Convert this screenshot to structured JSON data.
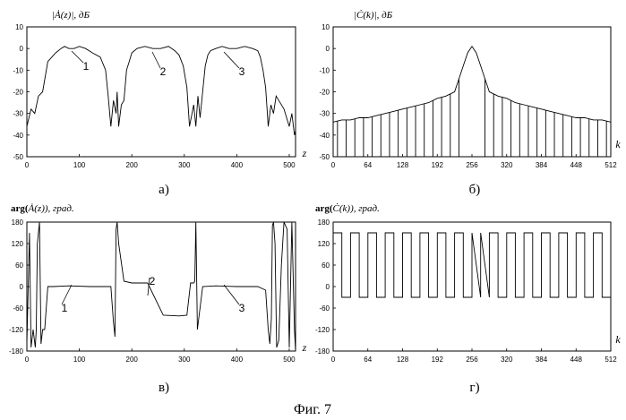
{
  "caption": "Фиг. 7",
  "chart_data": [
    {
      "id": "a",
      "type": "line",
      "title_pre": "|Ȧ(z)|",
      "title_post": ", дБ",
      "xlabel": "z",
      "xlim": [
        0,
        512
      ],
      "ylim": [
        -50,
        10
      ],
      "xticks": [
        0,
        100,
        200,
        300,
        400,
        500
      ],
      "yticks": [
        10,
        0,
        -10,
        -20,
        -30,
        -40,
        -50
      ],
      "sublabel": "а)",
      "annotations": [
        "1",
        "2",
        "3"
      ],
      "series": [
        {
          "name": "|A(z)|, dB",
          "x": [
            0,
            8,
            15,
            22,
            30,
            40,
            55,
            65,
            72,
            80,
            90,
            100,
            112,
            125,
            140,
            150,
            155,
            160,
            165,
            170,
            172,
            175,
            180,
            185,
            190,
            195,
            200,
            210,
            225,
            240,
            255,
            270,
            282,
            290,
            298,
            305,
            310,
            318,
            322,
            326,
            330,
            335,
            340,
            345,
            350,
            360,
            372,
            385,
            400,
            415,
            430,
            440,
            445,
            450,
            455,
            460,
            465,
            470,
            475,
            480,
            490,
            500,
            505,
            510,
            512
          ],
          "y": [
            -36,
            -28,
            -30,
            -22,
            -20,
            -6,
            -2,
            0,
            1,
            0,
            0,
            1,
            0,
            -2,
            -4,
            -10,
            -22,
            -36,
            -24,
            -30,
            -20,
            -36,
            -26,
            -24,
            -10,
            -6,
            -2,
            0,
            1,
            0,
            0,
            1,
            -1,
            -3,
            -8,
            -18,
            -36,
            -26,
            -36,
            -22,
            -32,
            -20,
            -8,
            -3,
            -1,
            0,
            1,
            0,
            0,
            1,
            0,
            -1,
            -4,
            -10,
            -18,
            -36,
            -26,
            -30,
            -22,
            -24,
            -28,
            -36,
            -30,
            -40,
            -38
          ]
        }
      ]
    },
    {
      "id": "b",
      "type": "line",
      "title_pre": "|Ċ(k)|",
      "title_post": ", дБ",
      "xlabel": "k",
      "xlim": [
        0,
        512
      ],
      "ylim": [
        -50,
        10
      ],
      "xticks": [
        0,
        64,
        128,
        192,
        256,
        320,
        384,
        448,
        512
      ],
      "yticks": [
        10,
        0,
        -10,
        -20,
        -30,
        -40,
        -50
      ],
      "sublabel": "б)",
      "series": [
        {
          "name": "|C(k)|, dB",
          "x": [
            0,
            16,
            32,
            48,
            64,
            80,
            96,
            112,
            128,
            144,
            160,
            176,
            192,
            208,
            224,
            232,
            240,
            248,
            256,
            264,
            272,
            280,
            288,
            304,
            320,
            336,
            352,
            368,
            384,
            400,
            416,
            432,
            448,
            464,
            480,
            496,
            512
          ],
          "y": [
            -34,
            -33,
            -33,
            -32,
            -32,
            -31,
            -30,
            -29,
            -28,
            -27,
            -26,
            -25,
            -23,
            -22,
            -20,
            -14,
            -8,
            -2,
            1,
            -2,
            -8,
            -14,
            -20,
            -22,
            -23,
            -25,
            -26,
            -27,
            -28,
            -29,
            -30,
            -31,
            -32,
            -32,
            -33,
            -33,
            -34
          ]
        }
      ]
    },
    {
      "id": "v",
      "type": "line",
      "title_pre": "arg(",
      "title_mid": "Ȧ(z)",
      "title_post": "), град.",
      "xlabel": "z",
      "xlim": [
        0,
        512
      ],
      "ylim": [
        -180,
        180
      ],
      "xticks": [
        0,
        100,
        200,
        300,
        400,
        500
      ],
      "yticks": [
        180,
        120,
        60,
        0,
        -60,
        -120,
        -180
      ],
      "sublabel": "в)",
      "annotations": [
        "1",
        "2",
        "3"
      ],
      "series": [
        {
          "name": "arg(A(z)), deg",
          "x": [
            0,
            5,
            8,
            12,
            16,
            18,
            20,
            24,
            27,
            30,
            34,
            40,
            50,
            80,
            120,
            160,
            165,
            168,
            170,
            172,
            175,
            185,
            200,
            230,
            260,
            290,
            305,
            312,
            318,
            320,
            322,
            325,
            335,
            360,
            400,
            440,
            455,
            460,
            463,
            466,
            468,
            470,
            473,
            476,
            480,
            485,
            490,
            496,
            500,
            505,
            510,
            512
          ],
          "y": [
            -160,
            150,
            -170,
            -120,
            -170,
            -120,
            120,
            180,
            -160,
            -120,
            -120,
            0,
            0,
            2,
            0,
            0,
            -100,
            -140,
            160,
            180,
            120,
            15,
            10,
            10,
            -80,
            -82,
            -80,
            10,
            10,
            15,
            180,
            -120,
            0,
            2,
            0,
            0,
            -10,
            -120,
            -160,
            -90,
            170,
            180,
            120,
            -170,
            -150,
            60,
            180,
            160,
            -170,
            180,
            -120,
            -180
          ]
        }
      ]
    },
    {
      "id": "g",
      "type": "line",
      "title_pre": "arg(",
      "title_mid": "Ċ(k)",
      "title_post": "), град.",
      "xlabel": "k",
      "xlim": [
        0,
        512
      ],
      "ylim": [
        -180,
        180
      ],
      "xticks": [
        0,
        64,
        128,
        192,
        256,
        320,
        384,
        448,
        512
      ],
      "yticks": [
        180,
        120,
        60,
        0,
        -60,
        -120,
        -180
      ],
      "sublabel": "г)",
      "levels": [
        150,
        -30
      ],
      "period": 32,
      "gap_at": 256
    }
  ]
}
